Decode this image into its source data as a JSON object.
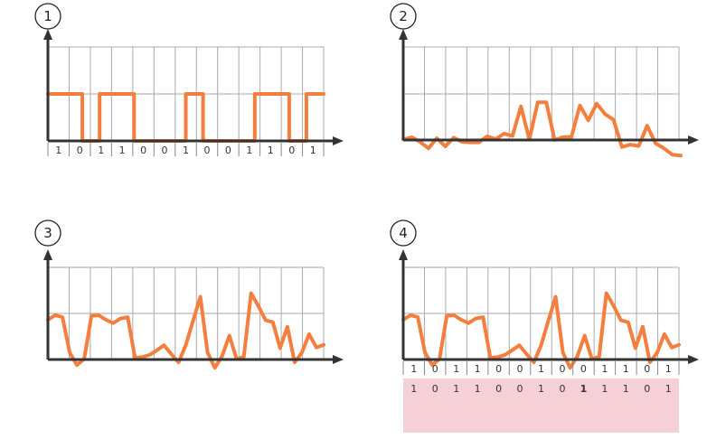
{
  "panels": [
    {
      "number": "1",
      "title": "",
      "bits": [
        "1",
        "0",
        "1",
        "1",
        "0",
        "0",
        "1",
        "0",
        "0",
        "1",
        "1",
        "0",
        "1"
      ],
      "signal_levels": [
        1,
        1,
        0,
        1,
        1,
        0,
        0,
        0,
        1,
        0,
        0,
        0,
        1,
        1,
        0,
        1
      ],
      "show_bits": true
    },
    {
      "number": "2",
      "title": "",
      "bits": [],
      "show_bits": false,
      "signal_samples": [
        0.01,
        0.06,
        -0.04,
        -0.18,
        0.04,
        -0.14,
        0.05,
        -0.04,
        -0.05,
        -0.05,
        0.08,
        0.02,
        0.14,
        0.09,
        0.73,
        0.01,
        0.82,
        0.82,
        0.0,
        0.06,
        0.07,
        0.75,
        0.43,
        0.79,
        0.56,
        0.44,
        -0.15,
        -0.1,
        -0.13,
        0.31,
        -0.07,
        -0.18,
        -0.32,
        -0.34
      ]
    },
    {
      "number": "3",
      "title": "",
      "bits": [],
      "show_bits": false,
      "signal_samples": [
        0.86,
        0.96,
        0.92,
        0.15,
        -0.12,
        0.01,
        0.95,
        0.96,
        0.86,
        0.79,
        0.89,
        0.92,
        0.04,
        0.05,
        0.1,
        0.2,
        0.31,
        0.12,
        -0.06,
        0.31,
        0.84,
        1.36,
        0.15,
        -0.18,
        0.07,
        0.52,
        0.01,
        0.06,
        1.44,
        1.16,
        0.85,
        0.81,
        0.25,
        0.71,
        -0.06,
        0.15,
        0.55,
        0.26,
        0.32
      ]
    },
    {
      "number": "4",
      "title": "",
      "bits": [
        "1",
        "0",
        "1",
        "1",
        "0",
        "0",
        "1",
        "0",
        "0",
        "1",
        "1",
        "0",
        "1"
      ],
      "decoded_bits": [
        "1",
        "0",
        "1",
        "1",
        "0",
        "0",
        "1",
        "0",
        "1",
        "1",
        "1",
        "0",
        "1"
      ],
      "error_index": 8,
      "show_bits": true,
      "signal_samples": [
        0.86,
        0.96,
        0.92,
        0.15,
        -0.12,
        0.01,
        0.95,
        0.96,
        0.86,
        0.79,
        0.89,
        0.92,
        0.04,
        0.05,
        0.1,
        0.2,
        0.31,
        0.12,
        -0.06,
        0.31,
        0.84,
        1.36,
        0.15,
        -0.18,
        0.07,
        0.52,
        0.01,
        0.06,
        1.44,
        1.16,
        0.85,
        0.81,
        0.25,
        0.71,
        -0.06,
        0.15,
        0.55,
        0.26,
        0.32
      ]
    }
  ],
  "colors": {
    "signal": "#f47e3e",
    "axis": "#333333",
    "grid": "#aaaaaa",
    "decoded_band": "#f5d0d6",
    "error_bit": "#b0003a"
  }
}
